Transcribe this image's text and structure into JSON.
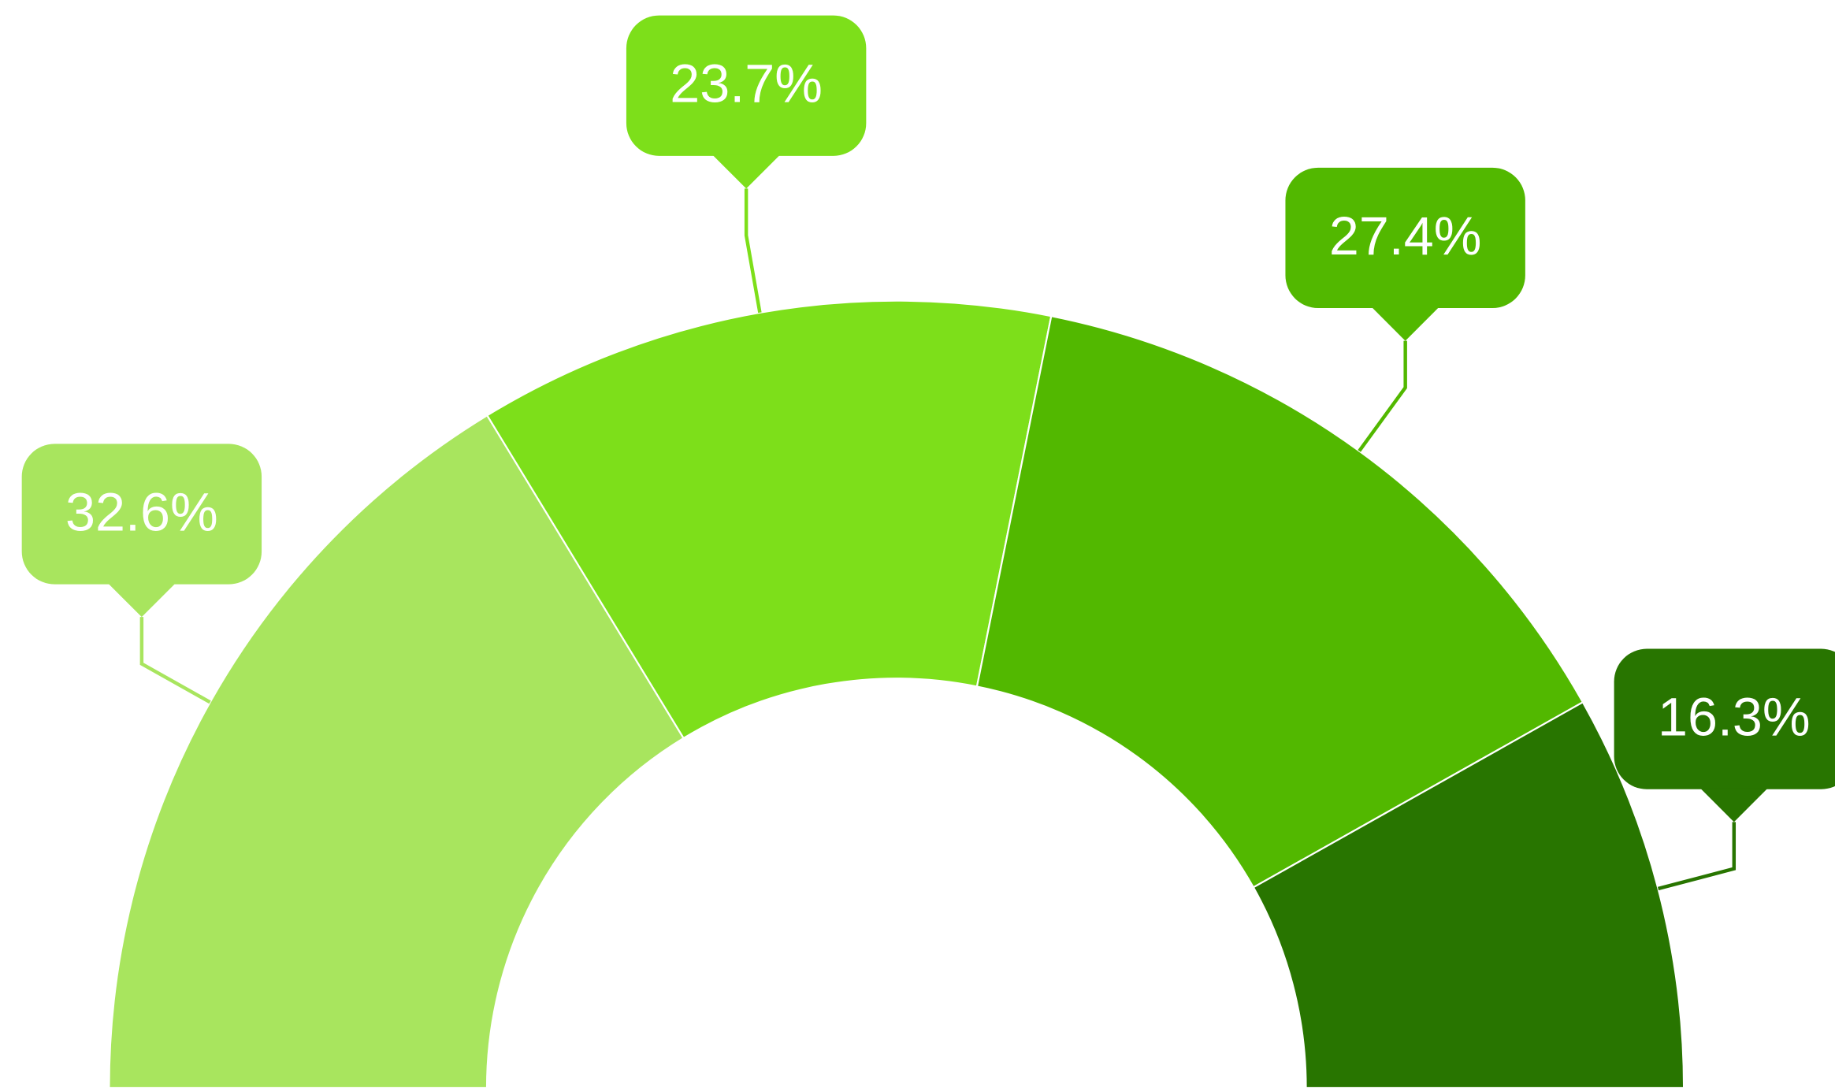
{
  "chart_data": {
    "type": "pie",
    "shape": "semi-donut",
    "values": [
      32.6,
      23.7,
      27.4,
      16.3
    ],
    "value_labels": [
      "32.6%",
      "23.7%",
      "27.4%",
      "16.3%"
    ],
    "colors": [
      "#a8e55e",
      "#7ddf1a",
      "#52b800",
      "#287500"
    ]
  }
}
